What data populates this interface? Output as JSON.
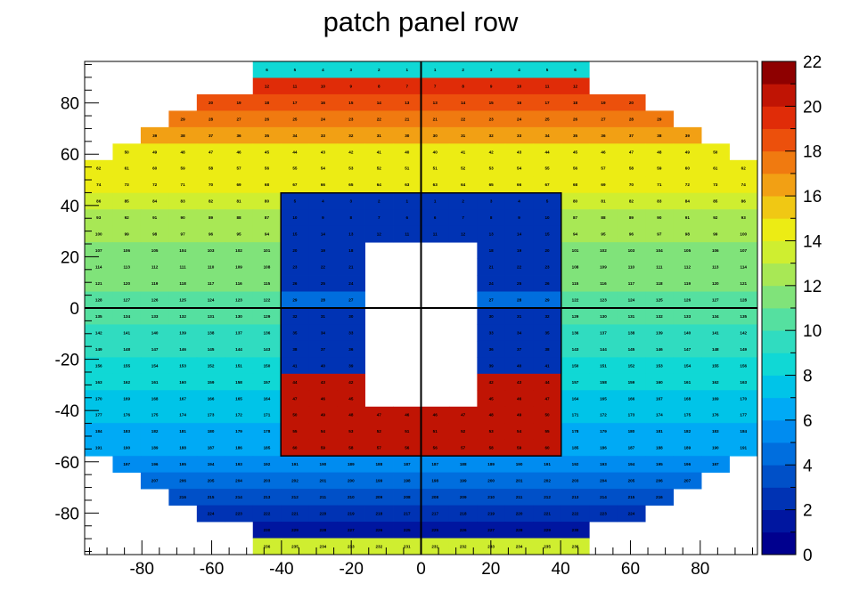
{
  "chart_data": {
    "type": "heatmap",
    "title": "patch panel row",
    "xlabel": "",
    "ylabel": "",
    "xlim": [
      -96.4,
      96.4
    ],
    "ylim": [
      -96.2,
      96.2
    ],
    "x_ticks": [
      -80,
      -60,
      -40,
      -20,
      0,
      20,
      40,
      60,
      80
    ],
    "y_ticks": [
      -80,
      -60,
      -40,
      -20,
      0,
      20,
      40,
      60,
      80
    ],
    "z_range": [
      0,
      22
    ],
    "z_ticks": [
      0,
      2,
      4,
      6,
      8,
      10,
      12,
      14,
      16,
      18,
      20,
      22
    ],
    "palette": [
      "#00008e",
      "#0016a0",
      "#0033b4",
      "#0050c8",
      "#006ede",
      "#008cf0",
      "#00aaf5",
      "#00c4e8",
      "#10d8d5",
      "#30dcc0",
      "#55e0a0",
      "#80e37a",
      "#a8e855",
      "#cfee30",
      "#ecec14",
      "#f0c814",
      "#f2a014",
      "#f07a10",
      "#ec500c",
      "#e02c08",
      "#c01404",
      "#8e0000"
    ],
    "grid": {
      "columns": 24,
      "rows": 30,
      "x0": -96.4,
      "dx": 8.033,
      "y_top": 96.2,
      "dy": 6.413,
      "outer_half_columns": [
        6,
        6,
        8,
        9,
        10,
        11,
        12,
        12,
        12,
        12,
        12,
        12,
        12,
        12,
        12,
        12,
        12,
        12,
        12,
        12,
        12,
        12,
        12,
        12,
        11,
        10,
        9,
        8,
        6,
        6
      ],
      "inner_window_rows": [
        8,
        9,
        10,
        11,
        12,
        13,
        14,
        15,
        16,
        17,
        18,
        19,
        20,
        21,
        22,
        23
      ],
      "inner_half_columns": 5,
      "central_hole_rows": [
        11,
        12,
        13,
        14,
        15,
        16,
        17,
        18,
        19,
        20
      ],
      "central_hole_half_columns": 2
    },
    "row_values": [
      8,
      19,
      18,
      17,
      16,
      15,
      15,
      14,
      13,
      12,
      12,
      11,
      11,
      11,
      10,
      10,
      9,
      9,
      8,
      8,
      7,
      7,
      6,
      6,
      5,
      4,
      3,
      2,
      1,
      13
    ],
    "inner_row_values": [
      2,
      2,
      2,
      2,
      2,
      2,
      4,
      2,
      2,
      2,
      2,
      20,
      20,
      20,
      20,
      20
    ],
    "axis_lines": {
      "x": 0,
      "y": 0
    }
  }
}
